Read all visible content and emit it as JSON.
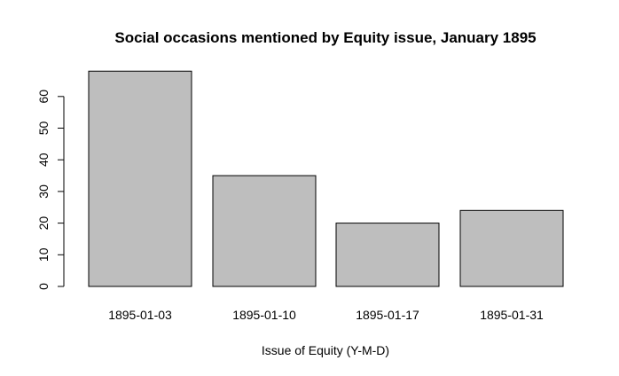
{
  "chart_data": {
    "type": "bar",
    "title": "Social occasions mentioned by Equity issue, January 1895",
    "xlabel": "Issue of Equity (Y-M-D)",
    "ylabel": "",
    "categories": [
      "1895-01-03",
      "1895-01-10",
      "1895-01-17",
      "1895-01-31"
    ],
    "values": [
      68,
      35,
      20,
      24
    ],
    "ylim": [
      0,
      70
    ],
    "yticks": [
      0,
      10,
      20,
      30,
      40,
      50,
      60
    ],
    "grid": false,
    "legend": "none",
    "colors": {
      "bar_fill": "#bebebe",
      "bar_stroke": "#000000"
    }
  }
}
